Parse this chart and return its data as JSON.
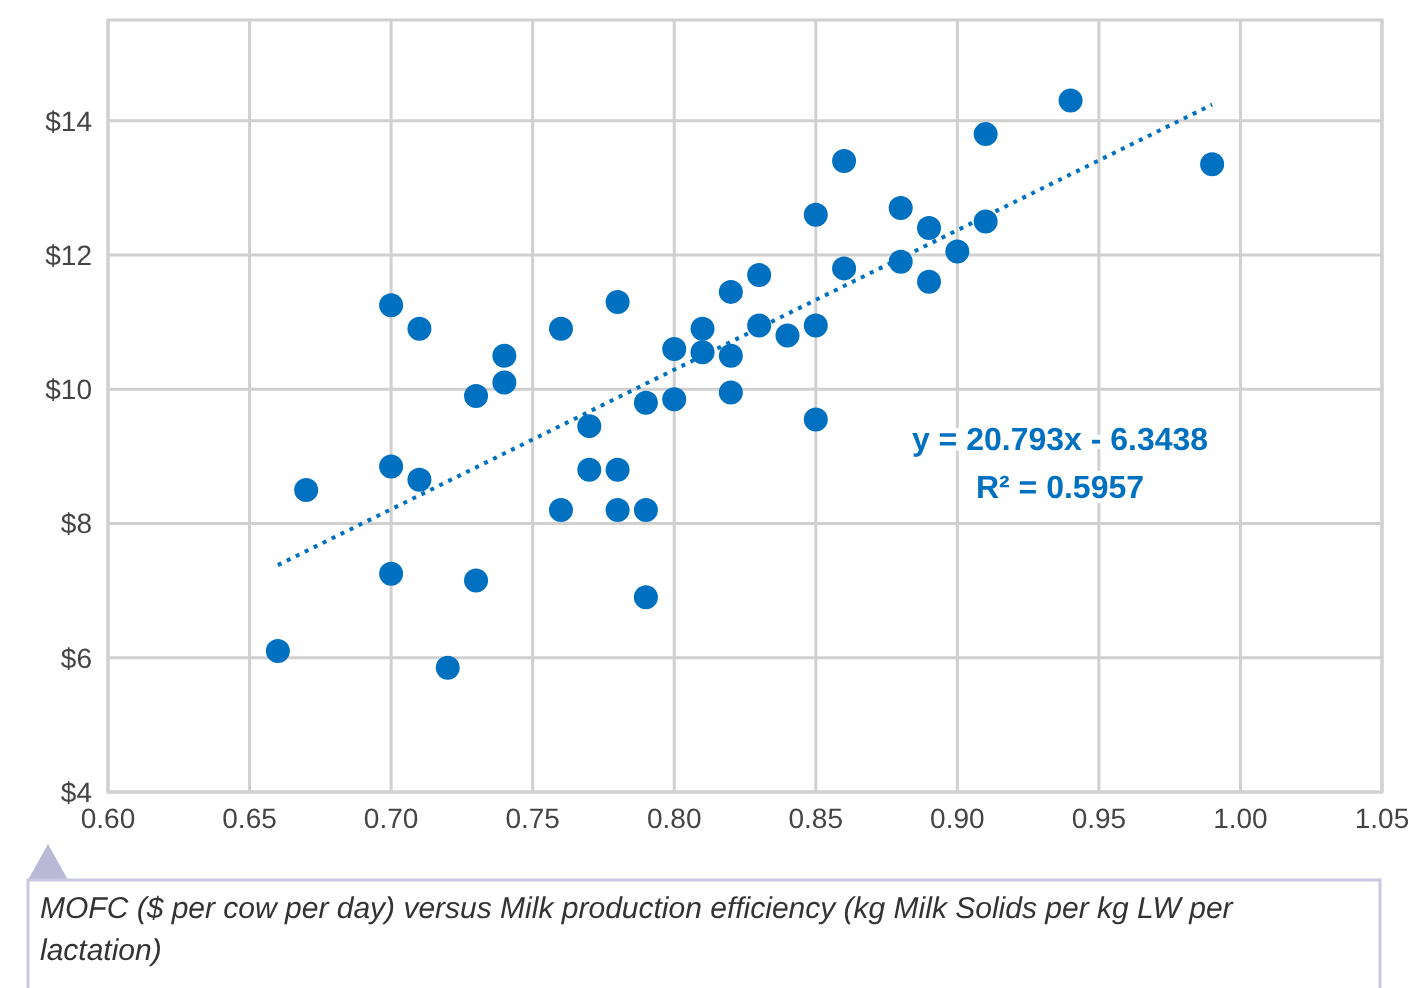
{
  "chart_data": {
    "type": "scatter",
    "marker": "circle",
    "grid": true,
    "xlim": [
      0.6,
      1.05
    ],
    "ylim": [
      4,
      15.5
    ],
    "xticks": [
      {
        "value": 0.6,
        "label": "0.60"
      },
      {
        "value": 0.65,
        "label": "0.65"
      },
      {
        "value": 0.7,
        "label": "0.70"
      },
      {
        "value": 0.75,
        "label": "0.75"
      },
      {
        "value": 0.8,
        "label": "0.80"
      },
      {
        "value": 0.85,
        "label": "0.85"
      },
      {
        "value": 0.9,
        "label": "0.90"
      },
      {
        "value": 0.95,
        "label": "0.95"
      },
      {
        "value": 1.0,
        "label": "1.00"
      },
      {
        "value": 1.05,
        "label": "1.05"
      }
    ],
    "yticks": [
      {
        "value": 4,
        "label": "$4"
      },
      {
        "value": 6,
        "label": "$6"
      },
      {
        "value": 8,
        "label": "$8"
      },
      {
        "value": 10,
        "label": "$10"
      },
      {
        "value": 12,
        "label": "$12"
      },
      {
        "value": 14,
        "label": "$14"
      }
    ],
    "series": [
      {
        "type": "scatter",
        "color": "#0070c0",
        "x": [
          0.66,
          0.67,
          0.7,
          0.7,
          0.7,
          0.71,
          0.71,
          0.72,
          0.73,
          0.73,
          0.74,
          0.74,
          0.76,
          0.76,
          0.77,
          0.77,
          0.78,
          0.78,
          0.78,
          0.79,
          0.79,
          0.79,
          0.8,
          0.8,
          0.81,
          0.81,
          0.82,
          0.82,
          0.82,
          0.83,
          0.83,
          0.84,
          0.85,
          0.85,
          0.85,
          0.86,
          0.86,
          0.88,
          0.88,
          0.89,
          0.89,
          0.9,
          0.91,
          0.91,
          0.94,
          0.99
        ],
        "values": [
          6.1,
          8.5,
          11.25,
          8.85,
          7.25,
          10.9,
          8.65,
          5.85,
          9.9,
          7.15,
          10.5,
          10.1,
          10.9,
          8.2,
          9.45,
          8.8,
          11.3,
          8.8,
          8.2,
          9.8,
          8.2,
          6.9,
          10.6,
          9.85,
          10.9,
          10.55,
          11.45,
          10.5,
          9.95,
          11.7,
          10.95,
          10.8,
          12.6,
          10.95,
          9.55,
          13.4,
          11.8,
          12.7,
          11.9,
          12.4,
          11.6,
          12.05,
          13.8,
          12.5,
          14.3,
          13.35
        ]
      },
      {
        "type": "line",
        "color": "#0070c0",
        "line_style": "dotted",
        "marker": "none",
        "x": [
          0.66,
          0.99
        ],
        "values": [
          7.38,
          14.24
        ]
      }
    ],
    "annotations": [
      "y = 20.793x - 6.3438",
      "R² = 0.5957",
      "MOFC ($ per cow per day) versus Milk production efficiency (kg Milk Solids per kg LW per lactation)"
    ]
  }
}
